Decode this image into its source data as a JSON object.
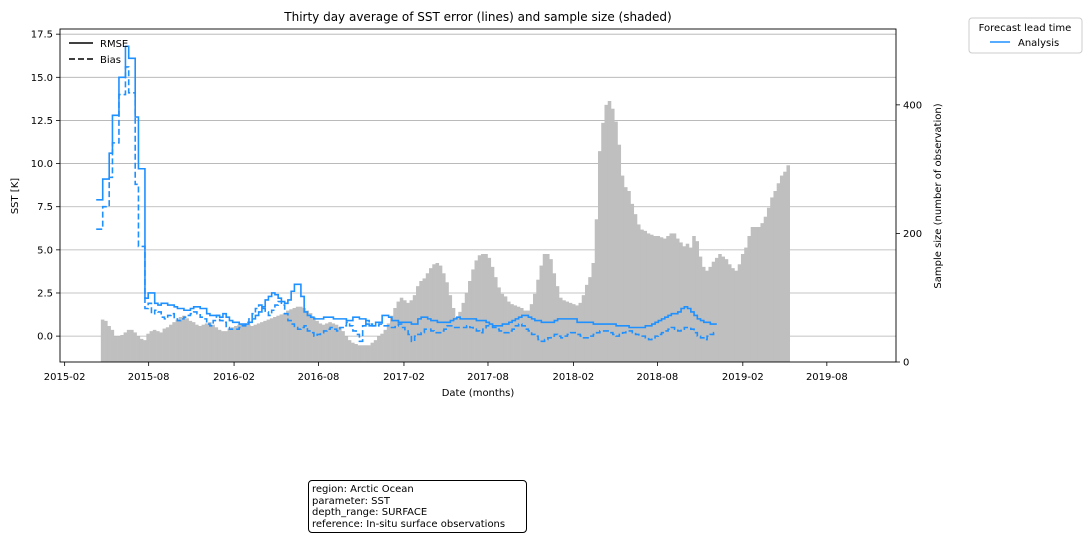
{
  "chart_data": {
    "type": "line",
    "title": "Thirty day average of SST error (lines) and sample size (shaded)",
    "xlabel": "Date (months)",
    "ylabel": "SST [K]",
    "y2label": "Sample size (number of observation)",
    "xlim": [
      "2015-01-22",
      "2019-12-28"
    ],
    "ylim": [
      -1.5,
      17.8
    ],
    "y2lim": [
      0,
      518
    ],
    "x_ticks": [
      "2015-02",
      "2015-08",
      "2016-02",
      "2016-08",
      "2017-02",
      "2017-08",
      "2018-02",
      "2018-08",
      "2019-02",
      "2019-08"
    ],
    "y_ticks": [
      "17.5",
      "15.0",
      "12.5",
      "10.0",
      "7.5",
      "5.0",
      "2.5",
      "0.0"
    ],
    "y2_ticks": [
      "400",
      "200",
      "0"
    ],
    "y_grid": true,
    "style_legend": {
      "placement": "upper-left",
      "entries": [
        {
          "label": "RMSE",
          "dash": "solid"
        },
        {
          "label": "Bias",
          "dash": "dashed"
        }
      ]
    },
    "series_legend": {
      "title": "Forecast lead time",
      "placement": "outside-right",
      "entries": [
        {
          "label": "Analysis",
          "color": "#1e90ff"
        }
      ]
    },
    "colors": {
      "series": "#1e90ff",
      "bars": "#bfbfbf",
      "grid": "#b0b0b0"
    },
    "bars_sample_size": {
      "start": "2015-04-20",
      "step_days": 7,
      "values": [
        66,
        64,
        56,
        50,
        40,
        40,
        42,
        46,
        50,
        50,
        46,
        40,
        36,
        34,
        44,
        48,
        50,
        48,
        46,
        52,
        54,
        58,
        62,
        66,
        70,
        72,
        68,
        64,
        62,
        58,
        56,
        58,
        60,
        62,
        58,
        54,
        50,
        48,
        48,
        52,
        54,
        56,
        58,
        60,
        60,
        58,
        56,
        58,
        60,
        62,
        64,
        66,
        68,
        70,
        72,
        74,
        76,
        80,
        82,
        84,
        86,
        86,
        84,
        80,
        76,
        70,
        64,
        60,
        58,
        60,
        62,
        60,
        58,
        54,
        48,
        40,
        34,
        30,
        28,
        26,
        26,
        26,
        26,
        30,
        34,
        40,
        44,
        50,
        60,
        72,
        84,
        94,
        100,
        96,
        92,
        96,
        104,
        118,
        126,
        130,
        138,
        146,
        152,
        154,
        150,
        138,
        124,
        104,
        84,
        70,
        78,
        92,
        108,
        126,
        144,
        158,
        166,
        168,
        168,
        162,
        148,
        132,
        116,
        106,
        102,
        94,
        90,
        88,
        86,
        84,
        80,
        80,
        90,
        106,
        128,
        150,
        168,
        168,
        160,
        138,
        118,
        100,
        96,
        94,
        92,
        90,
        88,
        92,
        104,
        120,
        132,
        154,
        222,
        328,
        372,
        400,
        406,
        394,
        374,
        338,
        290,
        272,
        266,
        246,
        230,
        214,
        206,
        204,
        200,
        198,
        196,
        196,
        194,
        192,
        196,
        200,
        200,
        192,
        186,
        180,
        184,
        178,
        196,
        188,
        164,
        148,
        142,
        148,
        156,
        162,
        168,
        164,
        160,
        152,
        146,
        142,
        152,
        168,
        178,
        196,
        210,
        210,
        210,
        216,
        226,
        240,
        256,
        266,
        278,
        290,
        296,
        306
      ]
    },
    "rmse": {
      "start": "2015-04-10",
      "step_days": 7,
      "values": [
        7.9,
        7.9,
        9.1,
        9.1,
        10.6,
        12.8,
        12.8,
        15,
        15,
        16.8,
        16.1,
        16.1,
        12.7,
        9.7,
        9.7,
        2.2,
        2.5,
        2.5,
        1.9,
        1.8,
        1.9,
        1.9,
        1.8,
        1.8,
        1.7,
        1.6,
        1.6,
        1.5,
        1.5,
        1.6,
        1.7,
        1.7,
        1.6,
        1.6,
        1.3,
        1.2,
        1.2,
        1.2,
        1.1,
        1.3,
        1.1,
        0.9,
        0.8,
        0.8,
        0.7,
        0.7,
        0.7,
        0.8,
        1.0,
        1.2,
        1.4,
        1.7,
        2.1,
        2.3,
        2.5,
        2.4,
        2.2,
        2.0,
        1.9,
        2.1,
        2.6,
        3.0,
        3.0,
        2.3,
        1.4,
        1.2,
        1.1,
        1.0,
        1.0,
        1.0,
        1.1,
        1.1,
        1.1,
        1.0,
        1.0,
        1.0,
        1.0,
        0.9,
        0.9,
        1.1,
        1.1,
        1.0,
        1.0,
        0.7,
        0.6,
        0.6,
        0.8,
        0.8,
        1.2,
        1.2,
        1.1,
        0.9,
        0.9,
        0.8,
        0.8,
        0.8,
        0.8,
        0.7,
        0.7,
        1.0,
        1.1,
        1.1,
        1.0,
        0.9,
        0.9,
        0.8,
        0.8,
        0.8,
        0.8,
        0.9,
        1.0,
        1.1,
        1.0,
        1.0,
        1.0,
        1.0,
        1.0,
        0.9,
        0.9,
        0.9,
        0.8,
        0.7,
        0.6,
        0.6,
        0.6,
        0.7,
        0.7,
        0.8,
        0.9,
        1.0,
        1.1,
        1.2,
        1.2,
        1.1,
        1.0,
        0.9,
        0.9,
        0.8,
        0.8,
        0.8,
        0.8,
        0.9,
        1.0,
        1.0,
        1.0,
        1.0,
        1.0,
        1.0,
        0.8,
        0.8,
        0.8,
        0.8,
        0.8,
        0.7,
        0.7,
        0.7,
        0.7,
        0.7,
        0.7,
        0.7,
        0.6,
        0.6,
        0.6,
        0.6,
        0.5,
        0.5,
        0.5,
        0.5,
        0.5,
        0.6,
        0.6,
        0.7,
        0.8,
        0.9,
        1.0,
        1.1,
        1.2,
        1.3,
        1.3,
        1.4,
        1.6,
        1.7,
        1.6,
        1.4,
        1.2,
        1.0,
        0.9,
        0.8,
        0.8,
        0.7,
        0.7
      ]
    },
    "bias": {
      "start": "2015-04-10",
      "step_days": 7,
      "values": [
        6.2,
        6.2,
        7.5,
        7.5,
        9.2,
        11.2,
        11.2,
        14.0,
        14.0,
        15.6,
        14.1,
        14.1,
        8.8,
        5.2,
        5.2,
        1.6,
        1.9,
        1.3,
        1.5,
        1.4,
        1.1,
        1.0,
        1.2,
        1.3,
        1.0,
        0.9,
        1.0,
        1.1,
        1.2,
        1.3,
        1.4,
        1.3,
        1.1,
        1.0,
        0.7,
        0.6,
        0.9,
        1.2,
        0.9,
        0.8,
        0.5,
        0.4,
        0.4,
        0.4,
        0.5,
        0.6,
        0.8,
        1.0,
        1.3,
        1.6,
        1.8,
        1.6,
        1.4,
        1.2,
        1.5,
        1.8,
        2.0,
        1.8,
        1.3,
        0.9,
        0.7,
        0.5,
        0.4,
        0.5,
        0.6,
        0.3,
        0.2,
        0.0,
        0.1,
        0.2,
        0.3,
        0.4,
        0.5,
        0.4,
        0.3,
        0.5,
        0.6,
        0.8,
        0.6,
        0.3,
        0.1,
        -0.3,
        0.6,
        0.9,
        0.7,
        0.6,
        0.6,
        0.7,
        0.6,
        0.6,
        0.5,
        0.5,
        0.6,
        0.7,
        0.5,
        0.3,
        0.1,
        -0.3,
        0.0,
        0.1,
        0.2,
        0.4,
        0.4,
        0.3,
        0.2,
        0.2,
        0.3,
        0.4,
        0.6,
        0.6,
        0.5,
        0.5,
        0.5,
        0.5,
        0.6,
        0.5,
        0.4,
        0.3,
        0.2,
        0.4,
        0.6,
        0.6,
        0.5,
        0.4,
        0.3,
        0.2,
        0.2,
        0.3,
        0.4,
        0.6,
        0.7,
        0.6,
        0.4,
        0.3,
        0.1,
        0.0,
        -0.2,
        -0.3,
        -0.2,
        -0.1,
        0.0,
        0.1,
        0.0,
        -0.1,
        0.0,
        0.1,
        0.2,
        0.2,
        0.1,
        0.0,
        -0.1,
        -0.1,
        0.0,
        0.1,
        0.2,
        0.3,
        0.3,
        0.3,
        0.2,
        0.1,
        0.0,
        0.1,
        0.2,
        0.3,
        0.3,
        0.2,
        0.1,
        0.0,
        0.0,
        -0.1,
        -0.2,
        -0.1,
        0.0,
        0.1,
        0.2,
        0.3,
        0.4,
        0.5,
        0.4,
        0.3,
        0.4,
        0.5,
        0.5,
        0.4,
        0.2,
        0.0,
        -0.1,
        -0.2,
        0.0,
        0.1,
        0.2
      ]
    }
  },
  "info_box": {
    "region": "region: Arctic Ocean",
    "parameter": "parameter: SST",
    "depth_range": "depth_range: SURFACE",
    "reference": "reference: In-situ surface observations"
  }
}
